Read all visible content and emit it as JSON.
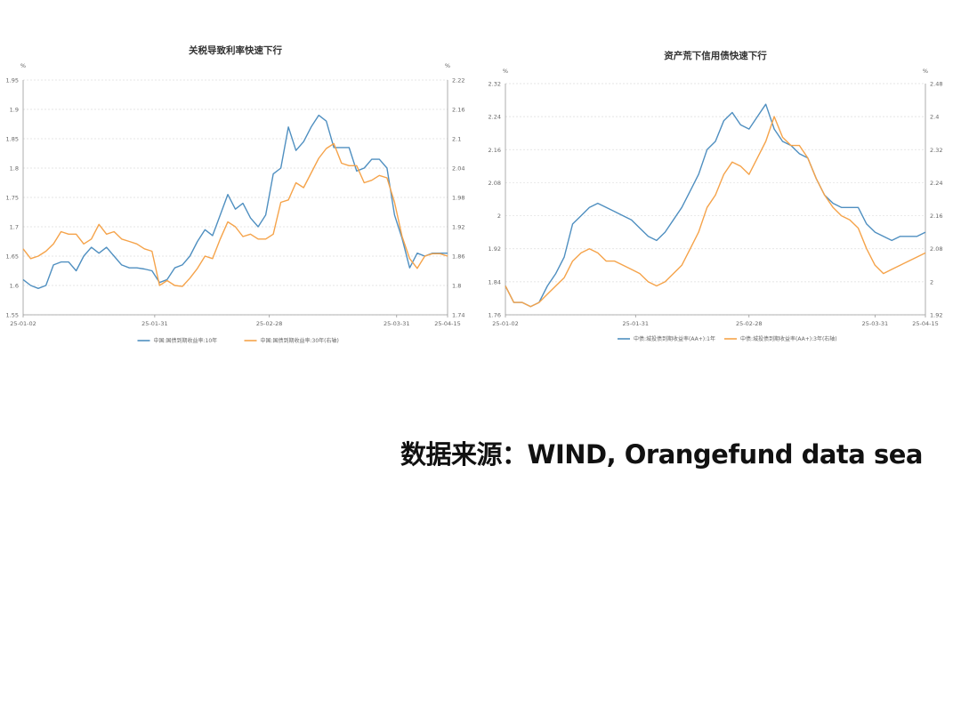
{
  "source_note": "数据来源：WIND, Orangefund data sea",
  "colors": {
    "series1": "#4f8fc0",
    "series2": "#f5a34a",
    "axis": "#666666",
    "grid": "#dddddd"
  },
  "chart_data": [
    {
      "type": "line",
      "title": "关税导致利率快速下行",
      "left_unit": "%",
      "right_unit": "%",
      "x_ticks": [
        "25-01-02",
        "25-01-31",
        "25-02-28",
        "25-03-31",
        "25-04-15"
      ],
      "ylim_left": [
        1.55,
        1.95
      ],
      "ylim_right": [
        1.74,
        2.22
      ],
      "yticks_left": [
        "1.55",
        "1.6",
        "1.65",
        "1.7",
        "1.75",
        "1.8",
        "1.85",
        "1.9",
        "1.95"
      ],
      "yticks_right": [
        "1.74",
        "1.8",
        "1.86",
        "1.92",
        "1.98",
        "2.04",
        "2.1",
        "2.16",
        "2.22"
      ],
      "grid": true,
      "legend_position": "bottom",
      "series": [
        {
          "name": "中国:国债到期收益率:10年",
          "axis": "left",
          "values": [
            1.61,
            1.6,
            1.595,
            1.6,
            1.635,
            1.64,
            1.64,
            1.625,
            1.65,
            1.665,
            1.655,
            1.665,
            1.65,
            1.635,
            1.63,
            1.63,
            1.628,
            1.625,
            1.605,
            1.61,
            1.63,
            1.635,
            1.65,
            1.675,
            1.695,
            1.685,
            1.72,
            1.755,
            1.73,
            1.74,
            1.715,
            1.7,
            1.72,
            1.79,
            1.8,
            1.87,
            1.83,
            1.845,
            1.87,
            1.89,
            1.88,
            1.835,
            1.835,
            1.835,
            1.795,
            1.8,
            1.815,
            1.815,
            1.8,
            1.72,
            1.68,
            1.63,
            1.655,
            1.65,
            1.655,
            1.655,
            1.655
          ]
        },
        {
          "name": "中国:国债到期收益率:30年(右轴)",
          "axis": "right",
          "values": [
            1.875,
            1.855,
            1.86,
            1.87,
            1.885,
            1.91,
            1.905,
            1.905,
            1.885,
            1.895,
            1.925,
            1.905,
            1.91,
            1.895,
            1.89,
            1.885,
            1.875,
            1.87,
            1.8,
            1.81,
            1.8,
            1.798,
            1.815,
            1.835,
            1.86,
            1.855,
            1.895,
            1.93,
            1.92,
            1.9,
            1.905,
            1.895,
            1.895,
            1.905,
            1.97,
            1.975,
            2.01,
            2.0,
            2.03,
            2.06,
            2.08,
            2.09,
            2.05,
            2.045,
            2.045,
            2.01,
            2.015,
            2.025,
            2.02,
            1.97,
            1.9,
            1.855,
            1.835,
            1.86,
            1.865,
            1.865,
            1.86
          ]
        }
      ]
    },
    {
      "type": "line",
      "title": "资产荒下信用债快速下行",
      "left_unit": "%",
      "right_unit": "%",
      "x_ticks": [
        "25-01-02",
        "25-01-31",
        "25-02-28",
        "25-03-31",
        "25-04-15"
      ],
      "ylim_left": [
        1.76,
        2.32
      ],
      "ylim_right": [
        1.92,
        2.48
      ],
      "yticks_left": [
        "1.76",
        "1.84",
        "1.92",
        "2",
        "2.08",
        "2.16",
        "2.24",
        "2.32"
      ],
      "yticks_right": [
        "1.92",
        "2",
        "2.08",
        "2.16",
        "2.24",
        "2.32",
        "2.4",
        "2.48"
      ],
      "grid": true,
      "legend_position": "bottom",
      "series": [
        {
          "name": "中债:城投债到期收益率(AA+):1年",
          "axis": "left",
          "values": [
            1.83,
            1.79,
            1.79,
            1.78,
            1.79,
            1.83,
            1.86,
            1.9,
            1.98,
            2.0,
            2.02,
            2.03,
            2.02,
            2.01,
            2.0,
            1.99,
            1.97,
            1.95,
            1.94,
            1.96,
            1.99,
            2.02,
            2.06,
            2.1,
            2.16,
            2.18,
            2.23,
            2.25,
            2.22,
            2.21,
            2.24,
            2.27,
            2.21,
            2.18,
            2.17,
            2.15,
            2.14,
            2.09,
            2.05,
            2.03,
            2.02,
            2.02,
            2.02,
            1.98,
            1.96,
            1.95,
            1.94,
            1.95,
            1.95,
            1.95,
            1.96
          ]
        },
        {
          "name": "中债:城投债到期收益率(AA+):3年(右轴)",
          "axis": "right",
          "values": [
            1.99,
            1.95,
            1.95,
            1.94,
            1.95,
            1.97,
            1.99,
            2.01,
            2.05,
            2.07,
            2.08,
            2.07,
            2.05,
            2.05,
            2.04,
            2.03,
            2.02,
            2.0,
            1.99,
            2.0,
            2.02,
            2.04,
            2.08,
            2.12,
            2.18,
            2.21,
            2.26,
            2.29,
            2.28,
            2.26,
            2.3,
            2.34,
            2.4,
            2.35,
            2.33,
            2.33,
            2.3,
            2.25,
            2.21,
            2.18,
            2.16,
            2.15,
            2.13,
            2.08,
            2.04,
            2.02,
            2.03,
            2.04,
            2.05,
            2.06,
            2.07
          ]
        }
      ]
    }
  ]
}
